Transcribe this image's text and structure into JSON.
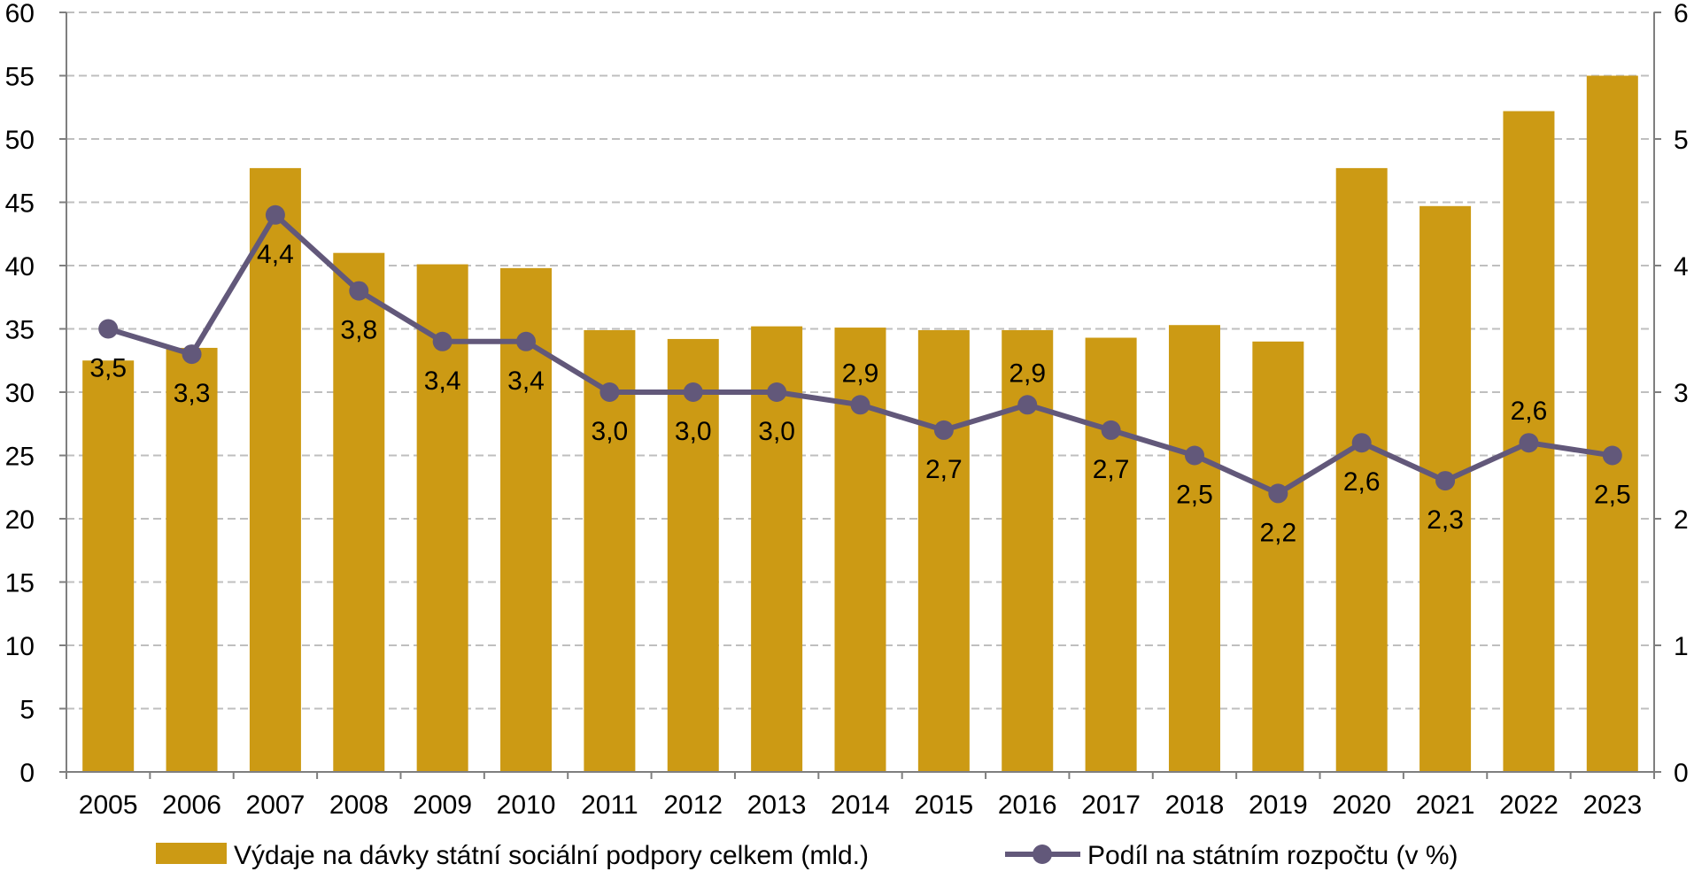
{
  "chart_data": {
    "type": "bar+line",
    "categories": [
      "2005",
      "2006",
      "2007",
      "2008",
      "2009",
      "2010",
      "2011",
      "2012",
      "2013",
      "2014",
      "2015",
      "2016",
      "2017",
      "2018",
      "2019",
      "2020",
      "2021",
      "2022",
      "2023"
    ],
    "series": [
      {
        "name": "Výdaje na dávky státní sociální podpory celkem (mld.)",
        "type": "bar",
        "axis": "left",
        "color": "#CC9A14",
        "values": [
          32.5,
          33.5,
          47.7,
          41.0,
          40.1,
          39.8,
          34.9,
          34.2,
          35.2,
          35.1,
          34.9,
          34.9,
          34.3,
          35.3,
          34.0,
          47.7,
          44.7,
          52.2,
          55.0
        ]
      },
      {
        "name": "Podíl na státním rozpočtu (v %)",
        "type": "line",
        "axis": "right",
        "color": "#62587A",
        "values": [
          3.5,
          3.3,
          4.4,
          3.8,
          3.4,
          3.4,
          3.0,
          3.0,
          3.0,
          2.9,
          2.7,
          2.9,
          2.7,
          2.5,
          2.2,
          2.6,
          2.3,
          2.6,
          2.5
        ],
        "labels": [
          "3,5",
          "3,3",
          "4,4",
          "3,8",
          "3,4",
          "3,4",
          "3,0",
          "3,0",
          "3,0",
          "2,9",
          "2,7",
          "2,9",
          "2,7",
          "2,5",
          "2,2",
          "2,6",
          "2,3",
          "2,6",
          "2,5"
        ],
        "label_side": [
          "below",
          "below",
          "below",
          "below",
          "below",
          "below",
          "below",
          "below",
          "below",
          "above",
          "below",
          "above",
          "below",
          "below",
          "below",
          "below",
          "below",
          "above",
          "below"
        ]
      }
    ],
    "left_axis": {
      "min": 0,
      "max": 60,
      "step": 5,
      "tick_labels": [
        "0",
        "5",
        "10",
        "15",
        "20",
        "25",
        "30",
        "35",
        "40",
        "45",
        "50",
        "55",
        "60"
      ]
    },
    "right_axis": {
      "min": 0,
      "max": 6,
      "step": 1,
      "tick_labels": [
        "0",
        "1",
        "2",
        "3",
        "4",
        "5",
        "6"
      ]
    },
    "grid": true,
    "legend_position": "bottom",
    "legend": [
      {
        "label": "Výdaje na dávky státní sociální podpory celkem (mld.)",
        "swatch": "bar"
      },
      {
        "label": "Podíl na státním rozpočtu (v %)",
        "swatch": "line-marker"
      }
    ]
  }
}
